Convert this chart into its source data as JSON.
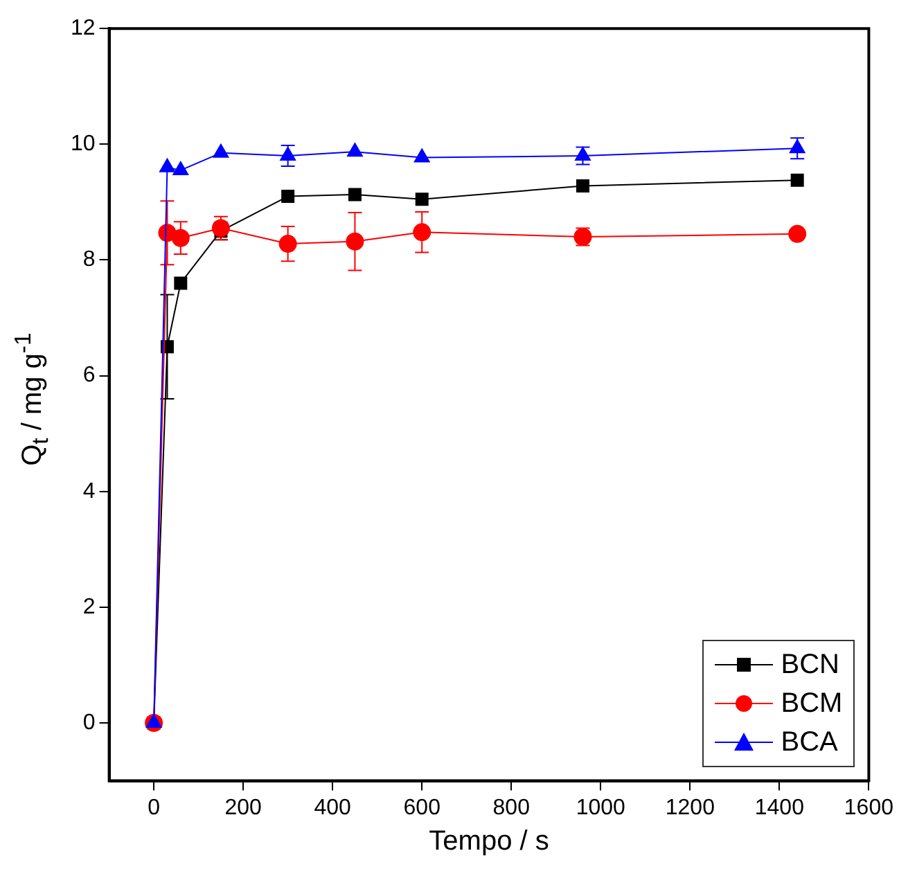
{
  "chart_data": {
    "type": "line",
    "xlabel": "Tempo / s",
    "ylabel": "Q$_{t}$ / mg g$^{-1}$",
    "xlim": [
      -100,
      1600
    ],
    "xticks": [
      0,
      200,
      400,
      600,
      800,
      1000,
      1200,
      1400,
      1600
    ],
    "ylim": [
      -1,
      12
    ],
    "yticks": [
      0,
      2,
      4,
      6,
      8,
      10,
      12
    ],
    "grid": false,
    "legend": "bottom right",
    "x": [
      0,
      30,
      60,
      150,
      300,
      450,
      600,
      960,
      1440
    ],
    "series": [
      {
        "name": "BCN",
        "color": "#000000",
        "marker": "square",
        "values": [
          0,
          6.5,
          7.6,
          8.5,
          9.1,
          9.13,
          9.05,
          9.28,
          9.38
        ],
        "errors": [
          null,
          0.9,
          null,
          0.15,
          null,
          null,
          null,
          null,
          null
        ]
      },
      {
        "name": "BCM",
        "color": "#ff0000",
        "marker": "circle",
        "values": [
          0,
          8.47,
          8.38,
          8.55,
          8.28,
          8.32,
          8.48,
          8.4,
          8.45
        ],
        "errors": [
          null,
          0.55,
          0.28,
          0.2,
          0.3,
          0.5,
          0.35,
          0.15,
          null
        ]
      },
      {
        "name": "BCA",
        "color": "#0000ff",
        "marker": "triangle",
        "values": [
          0,
          9.6,
          9.55,
          9.85,
          9.8,
          9.87,
          9.77,
          9.8,
          9.93
        ],
        "errors": [
          null,
          null,
          null,
          null,
          0.18,
          null,
          null,
          0.15,
          0.18
        ]
      }
    ]
  }
}
